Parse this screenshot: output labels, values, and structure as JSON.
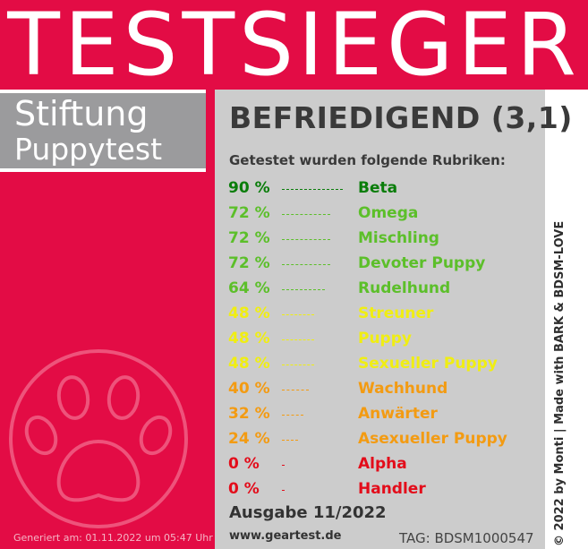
{
  "header": {
    "title": "TESTSIEGER"
  },
  "brand": {
    "line1": "Stiftung",
    "line2": "Puppytest"
  },
  "rating": "BEFRIEDIGEND (3,1)",
  "subtitle": "Getestet wurden folgende Rubriken:",
  "categories": [
    {
      "percent": "90 %",
      "name": "Beta",
      "value": 90,
      "color": "#0a7d0a"
    },
    {
      "percent": "72 %",
      "name": "Omega",
      "value": 72,
      "color": "#5cbf2a"
    },
    {
      "percent": "72 %",
      "name": "Mischling",
      "value": 72,
      "color": "#5cbf2a"
    },
    {
      "percent": "72 %",
      "name": "Devoter Puppy",
      "value": 72,
      "color": "#5cbf2a"
    },
    {
      "percent": "64 %",
      "name": "Rudelhund",
      "value": 64,
      "color": "#5cbf2a"
    },
    {
      "percent": "48 %",
      "name": "Streuner",
      "value": 48,
      "color": "#f0ee12"
    },
    {
      "percent": "48 %",
      "name": "Puppy",
      "value": 48,
      "color": "#f0ee12"
    },
    {
      "percent": "48 %",
      "name": "Sexueller Puppy",
      "value": 48,
      "color": "#f0ee12"
    },
    {
      "percent": "40 %",
      "name": "Wachhund",
      "value": 40,
      "color": "#f39b12"
    },
    {
      "percent": "32 %",
      "name": "Anwärter",
      "value": 32,
      "color": "#f39b12"
    },
    {
      "percent": "24 %",
      "name": "Asexueller Puppy",
      "value": 24,
      "color": "#f39b12"
    },
    {
      "percent": "0 %",
      "name": "Alpha",
      "value": 0,
      "color": "#e30c1a"
    },
    {
      "percent": "0 %",
      "name": "Handler",
      "value": 0,
      "color": "#e30c1a"
    }
  ],
  "issue": "Ausgabe 11/2022",
  "website": "www.geartest.de",
  "tag": "TAG: BDSM1000547",
  "generated": "Generiert am: 01.11.2022 um 05:47 Uhr",
  "copyright": "© 2022 by Monti | Made with BARK & BDSM-LOVE",
  "colors": {
    "background": "#e30c45",
    "panel": "#cccccc",
    "brand_box": "#9b9b9d"
  }
}
